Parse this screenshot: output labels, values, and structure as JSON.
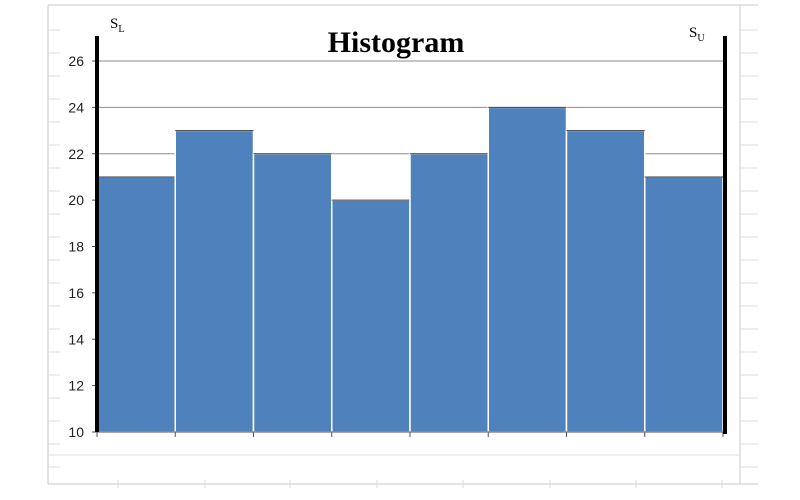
{
  "chart_data": {
    "type": "bar",
    "title": "Histogram",
    "categories": [
      "",
      "",
      "",
      "",
      "",
      "",
      "",
      ""
    ],
    "values": [
      21,
      23,
      22,
      20,
      22,
      24,
      23,
      21
    ],
    "ylim": [
      10,
      26
    ],
    "yticks": [
      10,
      12,
      14,
      16,
      18,
      20,
      22,
      24,
      26
    ],
    "xlabel": "",
    "ylabel": "",
    "grid": true,
    "bar_color": "#4f81bd",
    "spec_limits": {
      "lower": {
        "letter": "S",
        "sub": "L"
      },
      "upper": {
        "letter": "S",
        "sub": "U"
      }
    }
  }
}
